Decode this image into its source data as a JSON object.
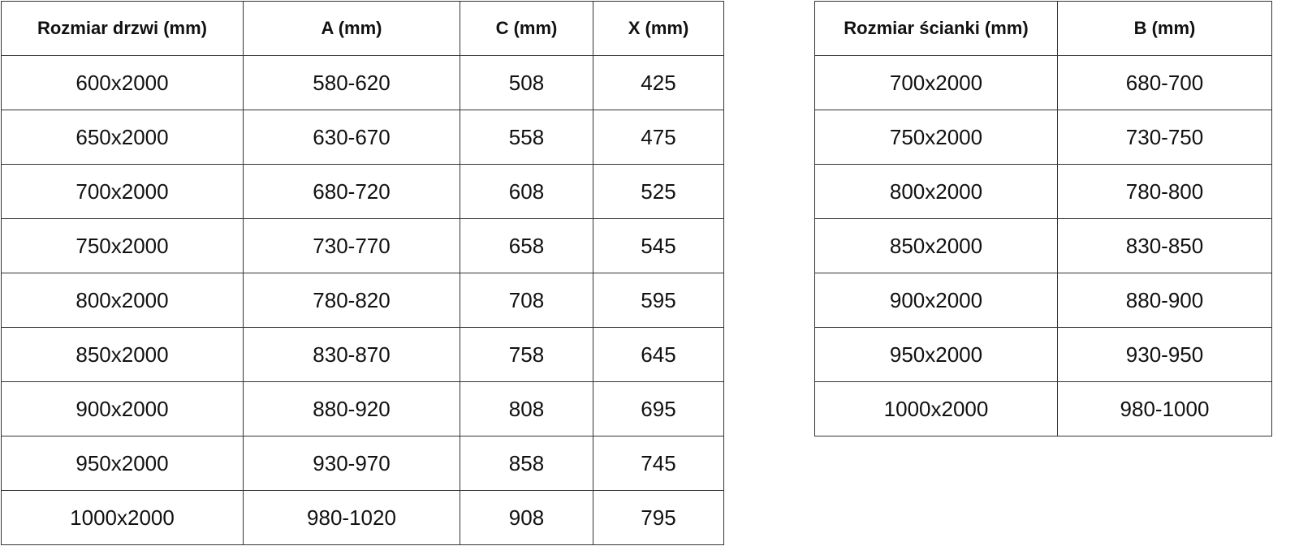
{
  "doors_table": {
    "headers": [
      "Rozmiar drzwi (mm)",
      "A (mm)",
      "C (mm)",
      "X (mm)"
    ],
    "rows": [
      [
        "600x2000",
        "580-620",
        "508",
        "425"
      ],
      [
        "650x2000",
        "630-670",
        "558",
        "475"
      ],
      [
        "700x2000",
        "680-720",
        "608",
        "525"
      ],
      [
        "750x2000",
        "730-770",
        "658",
        "545"
      ],
      [
        "800x2000",
        "780-820",
        "708",
        "595"
      ],
      [
        "850x2000",
        "830-870",
        "758",
        "645"
      ],
      [
        "900x2000",
        "880-920",
        "808",
        "695"
      ],
      [
        "950x2000",
        "930-970",
        "858",
        "745"
      ],
      [
        "1000x2000",
        "980-1020",
        "908",
        "795"
      ]
    ]
  },
  "wall_table": {
    "headers": [
      "Rozmiar ścianki (mm)",
      "B (mm)"
    ],
    "rows": [
      [
        "700x2000",
        "680-700"
      ],
      [
        "750x2000",
        "730-750"
      ],
      [
        "800x2000",
        "780-800"
      ],
      [
        "850x2000",
        "830-850"
      ],
      [
        "900x2000",
        "880-900"
      ],
      [
        "950x2000",
        "930-950"
      ],
      [
        "1000x2000",
        "980-1000"
      ]
    ]
  }
}
